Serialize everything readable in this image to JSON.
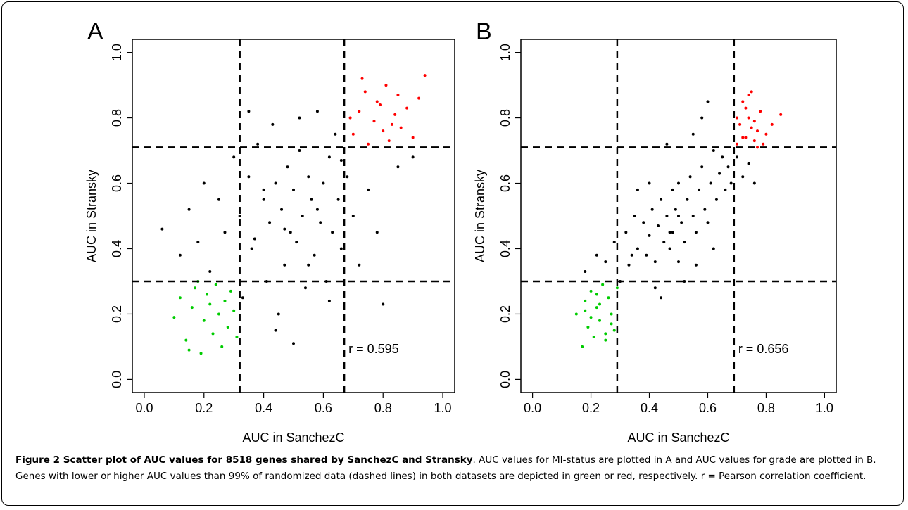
{
  "chart_data": [
    {
      "type": "scatter",
      "panel_label": "A",
      "xlabel": "AUC in SanchezC",
      "ylabel": "AUC in Stransky",
      "annotation": "r = 0.595",
      "xlim": [
        -0.04,
        1.04
      ],
      "ylim": [
        -0.04,
        1.04
      ],
      "xticks": [
        {
          "value": 0,
          "label": "0.0"
        },
        {
          "value": 0.2,
          "label": "0.2"
        },
        {
          "value": 0.4,
          "label": "0.4"
        },
        {
          "value": 0.6,
          "label": "0.6"
        },
        {
          "value": 0.8,
          "label": "0.8"
        },
        {
          "value": 1,
          "label": "1.0"
        }
      ],
      "yticks": [
        {
          "value": 0,
          "label": "0.0"
        },
        {
          "value": 0.2,
          "label": "0.2"
        },
        {
          "value": 0.4,
          "label": "0.4"
        },
        {
          "value": 0.6,
          "label": "0.6"
        },
        {
          "value": 0.8,
          "label": "0.8"
        },
        {
          "value": 1,
          "label": "1.0"
        }
      ],
      "thresholds": {
        "x": [
          0.32,
          0.67
        ],
        "y": [
          0.3,
          0.71
        ]
      },
      "series": [
        {
          "color": "#000000",
          "x": [
            0.06,
            0.12,
            0.15,
            0.18,
            0.2,
            0.22,
            0.25,
            0.27,
            0.3,
            0.32,
            0.33,
            0.35,
            0.36,
            0.38,
            0.4,
            0.41,
            0.42,
            0.43,
            0.44,
            0.45,
            0.46,
            0.47,
            0.48,
            0.49,
            0.5,
            0.5,
            0.51,
            0.52,
            0.53,
            0.54,
            0.55,
            0.56,
            0.57,
            0.58,
            0.59,
            0.6,
            0.61,
            0.62,
            0.63,
            0.64,
            0.65,
            0.66,
            0.68,
            0.7,
            0.72,
            0.75,
            0.78,
            0.8,
            0.85,
            0.9,
            0.37,
            0.44,
            0.52,
            0.58,
            0.62,
            0.35,
            0.47,
            0.55,
            0.4,
            0.66
          ],
          "values": [
            0.46,
            0.38,
            0.52,
            0.42,
            0.6,
            0.33,
            0.55,
            0.45,
            0.68,
            0.5,
            0.25,
            0.62,
            0.4,
            0.72,
            0.55,
            0.3,
            0.48,
            0.78,
            0.6,
            0.2,
            0.52,
            0.35,
            0.65,
            0.45,
            0.58,
            0.11,
            0.42,
            0.7,
            0.5,
            0.28,
            0.62,
            0.55,
            0.38,
            0.82,
            0.48,
            0.6,
            0.3,
            0.68,
            0.45,
            0.75,
            0.55,
            0.4,
            0.62,
            0.5,
            0.35,
            0.58,
            0.45,
            0.23,
            0.65,
            0.68,
            0.43,
            0.15,
            0.8,
            0.52,
            0.24,
            0.82,
            0.46,
            0.35,
            0.58,
            0.67
          ]
        },
        {
          "color": "#ff0000",
          "x": [
            0.7,
            0.72,
            0.74,
            0.75,
            0.77,
            0.78,
            0.8,
            0.81,
            0.82,
            0.84,
            0.85,
            0.86,
            0.88,
            0.9,
            0.92,
            0.94,
            0.69,
            0.73,
            0.79,
            0.83
          ],
          "values": [
            0.75,
            0.82,
            0.88,
            0.72,
            0.79,
            0.85,
            0.76,
            0.9,
            0.73,
            0.81,
            0.87,
            0.77,
            0.83,
            0.74,
            0.86,
            0.93,
            0.8,
            0.92,
            0.84,
            0.78
          ]
        },
        {
          "color": "#00cc00",
          "x": [
            0.1,
            0.12,
            0.14,
            0.16,
            0.17,
            0.19,
            0.2,
            0.21,
            0.23,
            0.24,
            0.25,
            0.26,
            0.27,
            0.28,
            0.29,
            0.3,
            0.31,
            0.15,
            0.22,
            0.18
          ],
          "values": [
            0.19,
            0.25,
            0.12,
            0.22,
            0.28,
            0.08,
            0.18,
            0.26,
            0.14,
            0.29,
            0.2,
            0.1,
            0.24,
            0.16,
            0.27,
            0.21,
            0.13,
            0.09,
            0.23,
            0.3
          ]
        }
      ]
    },
    {
      "type": "scatter",
      "panel_label": "B",
      "xlabel": "AUC in SanchezC",
      "ylabel": "AUC in Stransky",
      "annotation": "r = 0.656",
      "xlim": [
        -0.04,
        1.04
      ],
      "ylim": [
        -0.04,
        1.04
      ],
      "xticks": [
        {
          "value": 0,
          "label": "0.0"
        },
        {
          "value": 0.2,
          "label": "0.2"
        },
        {
          "value": 0.4,
          "label": "0.4"
        },
        {
          "value": 0.6,
          "label": "0.6"
        },
        {
          "value": 0.8,
          "label": "0.8"
        },
        {
          "value": 1,
          "label": "1.0"
        }
      ],
      "yticks": [
        {
          "value": 0,
          "label": "0.0"
        },
        {
          "value": 0.2,
          "label": "0.2"
        },
        {
          "value": 0.4,
          "label": "0.4"
        },
        {
          "value": 0.6,
          "label": "0.6"
        },
        {
          "value": 0.8,
          "label": "0.8"
        },
        {
          "value": 1,
          "label": "1.0"
        }
      ],
      "thresholds": {
        "x": [
          0.29,
          0.69
        ],
        "y": [
          0.3,
          0.71
        ]
      },
      "series": [
        {
          "color": "#000000",
          "x": [
            0.18,
            0.22,
            0.25,
            0.28,
            0.3,
            0.32,
            0.33,
            0.35,
            0.36,
            0.38,
            0.39,
            0.4,
            0.41,
            0.42,
            0.43,
            0.44,
            0.45,
            0.46,
            0.47,
            0.48,
            0.48,
            0.49,
            0.5,
            0.5,
            0.51,
            0.52,
            0.53,
            0.54,
            0.55,
            0.56,
            0.57,
            0.58,
            0.59,
            0.6,
            0.61,
            0.62,
            0.63,
            0.64,
            0.65,
            0.66,
            0.67,
            0.68,
            0.7,
            0.72,
            0.74,
            0.76,
            0.42,
            0.46,
            0.52,
            0.55,
            0.58,
            0.36,
            0.44,
            0.5,
            0.62,
            0.34,
            0.4,
            0.56,
            0.6,
            0.47
          ],
          "values": [
            0.33,
            0.38,
            0.36,
            0.42,
            0.3,
            0.45,
            0.35,
            0.5,
            0.4,
            0.48,
            0.38,
            0.44,
            0.52,
            0.36,
            0.47,
            0.55,
            0.42,
            0.5,
            0.4,
            0.58,
            0.45,
            0.52,
            0.36,
            0.6,
            0.48,
            0.42,
            0.55,
            0.62,
            0.5,
            0.45,
            0.58,
            0.65,
            0.52,
            0.48,
            0.6,
            0.7,
            0.55,
            0.63,
            0.68,
            0.58,
            0.65,
            0.6,
            0.68,
            0.62,
            0.66,
            0.6,
            0.28,
            0.72,
            0.3,
            0.75,
            0.8,
            0.58,
            0.25,
            0.5,
            0.4,
            0.38,
            0.6,
            0.35,
            0.85,
            0.45
          ]
        },
        {
          "color": "#ff0000",
          "x": [
            0.7,
            0.71,
            0.72,
            0.73,
            0.74,
            0.75,
            0.76,
            0.77,
            0.78,
            0.79,
            0.8,
            0.82,
            0.85,
            0.7,
            0.72,
            0.75,
            0.73,
            0.77,
            0.74,
            0.76
          ],
          "values": [
            0.72,
            0.78,
            0.85,
            0.74,
            0.8,
            0.88,
            0.73,
            0.76,
            0.82,
            0.72,
            0.75,
            0.78,
            0.81,
            0.8,
            0.74,
            0.77,
            0.83,
            0.71,
            0.87,
            0.79
          ]
        },
        {
          "color": "#00cc00",
          "x": [
            0.15,
            0.17,
            0.18,
            0.19,
            0.2,
            0.21,
            0.22,
            0.23,
            0.24,
            0.25,
            0.26,
            0.27,
            0.28,
            0.29,
            0.2,
            0.23,
            0.25,
            0.22,
            0.27,
            0.18
          ],
          "values": [
            0.2,
            0.1,
            0.24,
            0.16,
            0.27,
            0.13,
            0.22,
            0.18,
            0.29,
            0.12,
            0.25,
            0.2,
            0.15,
            0.28,
            0.19,
            0.23,
            0.14,
            0.26,
            0.17,
            0.21
          ]
        }
      ]
    }
  ],
  "caption": {
    "bold": "Figure 2 Scatter plot of AUC values for 8518 genes shared by SanchezC and Stransky",
    "text": ". AUC values for MI-status are plotted in A and AUC values for grade are plotted in B. Genes with lower or higher AUC values than 99% of randomized data (dashed lines) in both datasets are depicted in green or red, respectively. r = Pearson correlation coefficient."
  }
}
